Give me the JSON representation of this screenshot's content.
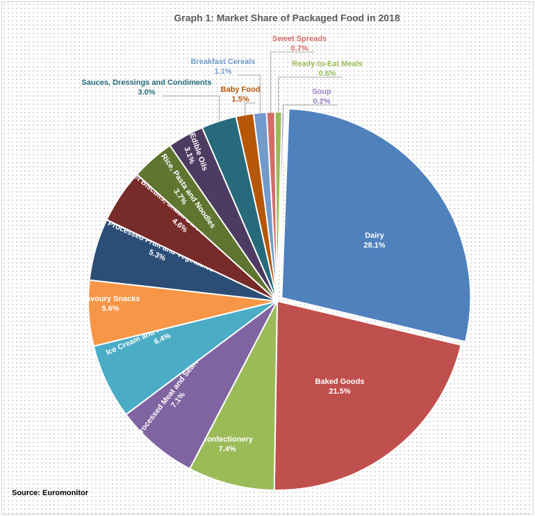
{
  "chart_data": {
    "type": "pie",
    "title": "Graph 1: Market Share of Packaged Food in 2018",
    "source": "Source: Euromonitor",
    "categories": [
      "Dairy",
      "Baked Goods",
      "Confectionery",
      "Processed Meat and Seafood",
      "Ice Cream and Frozen Desserts",
      "Savoury Snacks",
      "Processed Fruit and Vegetables",
      "Sweet Biscuits, Snack Bars and Fruit Snacks",
      "Rice, Pasta and Noodles",
      "Edible Oils",
      "Sauces, Dressings and Condiments",
      "Baby Food",
      "Breakfast Cereals",
      "Sweet Spreads",
      "Ready-to-Eat Meals",
      "Soup"
    ],
    "values": [
      28.1,
      21.5,
      7.4,
      7.1,
      6.4,
      5.6,
      5.3,
      4.6,
      3.7,
      3.1,
      3.0,
      1.5,
      1.1,
      0.7,
      0.6,
      0.2
    ],
    "value_labels": [
      "28.1%",
      "21.5%",
      "7.4%",
      "7.1%",
      "6.4%",
      "5.6%",
      "5.3%",
      "4.6%",
      "3.7%",
      "3.1%",
      "3.0%",
      "1.5%",
      "1.1%",
      "0.7%",
      "0.6%",
      "0.2%"
    ],
    "colors": [
      "#4f81bd",
      "#c0504d",
      "#9bbb59",
      "#8064a2",
      "#4bacc6",
      "#f79646",
      "#2c4d75",
      "#772c2a",
      "#5f7530",
      "#4d3b62",
      "#276a7c",
      "#b65708",
      "#729aca",
      "#d46c6a",
      "#9bbb59",
      "#9c85c0"
    ]
  }
}
